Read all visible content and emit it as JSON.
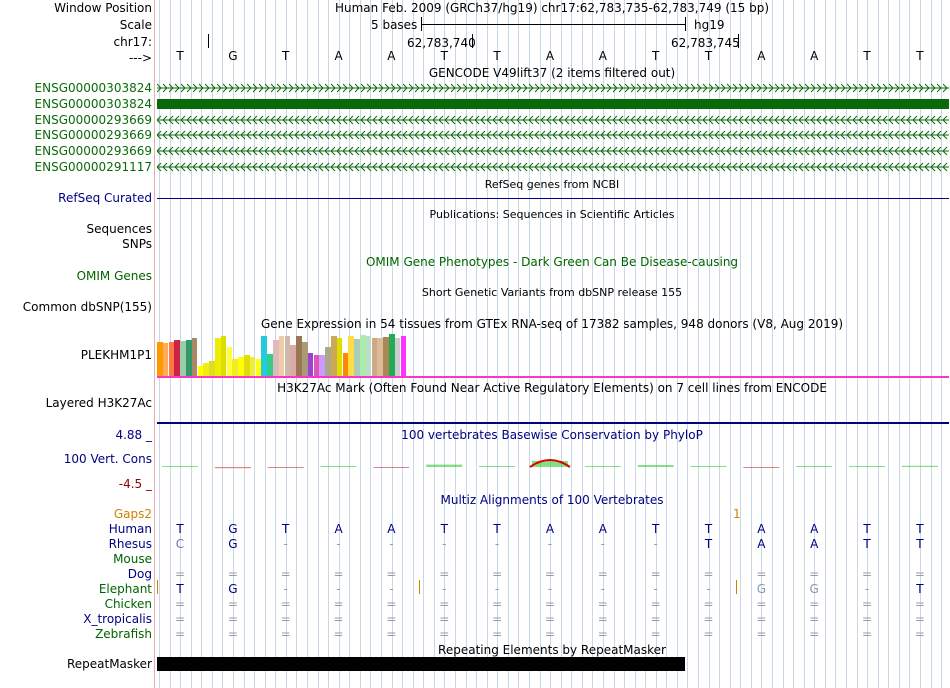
{
  "header": {
    "window_position_label": "Window Position",
    "scale_label": "Scale",
    "chrom_label": "chr17:",
    "arrow_label": "--->",
    "assembly_text": "Human Feb. 2009 (GRCh37/hg19)   chr17:62,783,735-62,783,749 (15 bp)",
    "scale_text": "5 bases",
    "db_label": "hg19",
    "coord_1": "62,783,740",
    "coord_2": "62,783,745"
  },
  "sequence": [
    "T",
    "G",
    "T",
    "A",
    "A",
    "T",
    "T",
    "A",
    "A",
    "T",
    "T",
    "A",
    "A",
    "T",
    "T"
  ],
  "tracks": {
    "gencode": {
      "title": "GENCODE V49lift37 (2 items filtered out)",
      "color": "#0a6a0a",
      "items": [
        {
          "name": "ENSG00000303824",
          "strand": "+",
          "style": "line"
        },
        {
          "name": "ENSG00000303824",
          "strand": "+",
          "style": "block"
        },
        {
          "name": "ENSG00000293669",
          "strand": "-",
          "style": "line"
        },
        {
          "name": "ENSG00000293669",
          "strand": "-",
          "style": "line"
        },
        {
          "name": "ENSG00000293669",
          "strand": "-",
          "style": "line"
        },
        {
          "name": "ENSG00000291117",
          "strand": "-",
          "style": "line"
        }
      ]
    },
    "refseq": {
      "label": "RefSeq Curated",
      "title": "RefSeq genes from NCBI"
    },
    "publications": {
      "title": "Publications: Sequences in Scientific Articles",
      "label_1": "Sequences",
      "label_2": "SNPs"
    },
    "omim": {
      "label": "OMIM Genes",
      "title": "OMIM Gene Phenotypes - Dark Green Can Be Disease-causing"
    },
    "dbsnp": {
      "label": "Common dbSNP(155)",
      "title": "Short Genetic Variants from dbSNP release 155"
    },
    "gtex": {
      "title": "Gene Expression in 54 tissues from GTEx RNA-seq of 17382 samples, 948 donors (V8, Aug 2019)",
      "gene": "PLEKHM1P1",
      "bars": [
        {
          "c": "#ff9900",
          "v": 0.82
        },
        {
          "c": "#ffaa55",
          "v": 0.78
        },
        {
          "c": "#ff7744",
          "v": 0.8
        },
        {
          "c": "#cc2244",
          "v": 0.85
        },
        {
          "c": "#99ccaa",
          "v": 0.83
        },
        {
          "c": "#339966",
          "v": 0.85
        },
        {
          "c": "#aa8866",
          "v": 0.9
        },
        {
          "c": "#ffff00",
          "v": 0.25
        },
        {
          "c": "#eeee11",
          "v": 0.3
        },
        {
          "c": "#dddd22",
          "v": 0.35
        },
        {
          "c": "#eeee00",
          "v": 0.9
        },
        {
          "c": "#dddd00",
          "v": 0.95
        },
        {
          "c": "#ffff33",
          "v": 0.7
        },
        {
          "c": "#eeee22",
          "v": 0.4
        },
        {
          "c": "#ffff00",
          "v": 0.45
        },
        {
          "c": "#dddd11",
          "v": 0.5
        },
        {
          "c": "#eeee33",
          "v": 0.45
        },
        {
          "c": "#ffff11",
          "v": 0.4
        },
        {
          "c": "#22ccdd",
          "v": 0.95
        },
        {
          "c": "#33cc88",
          "v": 0.52
        },
        {
          "c": "#ddbbbb",
          "v": 0.85
        },
        {
          "c": "#eeccaa",
          "v": 0.95
        },
        {
          "c": "#ccbbaa",
          "v": 0.95
        },
        {
          "c": "#ddaaaa",
          "v": 0.75
        },
        {
          "c": "#997755",
          "v": 0.95
        },
        {
          "c": "#aa9977",
          "v": 0.8
        },
        {
          "c": "#9944cc",
          "v": 0.55
        },
        {
          "c": "#dd55bb",
          "v": 0.5
        },
        {
          "c": "#cc99ff",
          "v": 0.5
        },
        {
          "c": "#aaaa88",
          "v": 0.68
        },
        {
          "c": "#ccaa55",
          "v": 0.95
        },
        {
          "c": "#dddd00",
          "v": 0.9
        },
        {
          "c": "#ff8800",
          "v": 0.55
        },
        {
          "c": "#ffdd44",
          "v": 0.95
        },
        {
          "c": "#aaccbb",
          "v": 0.88
        },
        {
          "c": "#aaeeaa",
          "v": 0.98
        },
        {
          "c": "#bbddcc",
          "v": 0.95
        },
        {
          "c": "#ccaa88",
          "v": 0.9
        },
        {
          "c": "#ddbb99",
          "v": 0.9
        },
        {
          "c": "#aa8855",
          "v": 0.92
        },
        {
          "c": "#22aa55",
          "v": 1.0
        },
        {
          "c": "#cccccc",
          "v": 0.9
        },
        {
          "c": "#ff33ff",
          "v": 0.95
        }
      ]
    },
    "h3k27ac": {
      "label": "Layered H3K27Ac",
      "title": "H3K27Ac Mark (Often Found Near Active Regulatory Elements) on 7 cell lines from ENCODE"
    },
    "phylop": {
      "label": "100 Vert. Cons",
      "title": "100 vertebrates Basewise Conservation by PhyloP",
      "ymax": "4.88 _",
      "ymin": "-4.5 _",
      "scores": [
        0.2,
        -0.3,
        -0.1,
        0.15,
        -0.1,
        0.6,
        0.1,
        1.5,
        0.2,
        0.5,
        0.1,
        -0.1,
        0.05,
        0.2,
        0.3
      ]
    },
    "multiz": {
      "title": "Multiz Alignments of 100 Vertebrates",
      "gaps_label": "Gaps2",
      "gap_marker": "1",
      "species": [
        {
          "name": "Human",
          "row": [
            "T",
            "G",
            "T",
            "A",
            "A",
            "T",
            "T",
            "A",
            "A",
            "T",
            "T",
            "A",
            "A",
            "T",
            "T"
          ]
        },
        {
          "name": "Rhesus",
          "row": [
            "C",
            "G",
            "-",
            "-",
            "-",
            "-",
            "-",
            "-",
            "-",
            "-",
            "T",
            "A",
            "A",
            "T",
            "T"
          ]
        },
        {
          "name": "Mouse",
          "row": [
            "",
            "",
            "",
            "",
            "",
            "",
            "",
            "",
            "",
            "",
            "",
            "",
            "",
            "",
            ""
          ]
        },
        {
          "name": "Dog",
          "row": [
            "=",
            "=",
            "=",
            "=",
            "=",
            "=",
            "=",
            "=",
            "=",
            "=",
            "=",
            "=",
            "=",
            "=",
            "="
          ]
        },
        {
          "name": "Elephant",
          "row": [
            "T",
            "G",
            "-",
            "-",
            "-",
            "-",
            "-",
            "-",
            "-",
            "-",
            "-",
            "G",
            "G",
            "-",
            "T"
          ]
        },
        {
          "name": "Chicken",
          "row": [
            "=",
            "=",
            "=",
            "=",
            "=",
            "=",
            "=",
            "=",
            "=",
            "=",
            "=",
            "=",
            "=",
            "=",
            "="
          ]
        },
        {
          "name": "X_tropicalis",
          "row": [
            "=",
            "=",
            "=",
            "=",
            "=",
            "=",
            "=",
            "=",
            "=",
            "=",
            "=",
            "=",
            "=",
            "=",
            "="
          ]
        },
        {
          "name": "Zebrafish",
          "row": [
            "=",
            "=",
            "=",
            "=",
            "=",
            "=",
            "=",
            "=",
            "=",
            "=",
            "=",
            "=",
            "=",
            "=",
            "="
          ]
        }
      ]
    },
    "repeatmasker": {
      "label": "RepeatMasker",
      "title": "Repeating Elements by RepeatMasker"
    }
  }
}
